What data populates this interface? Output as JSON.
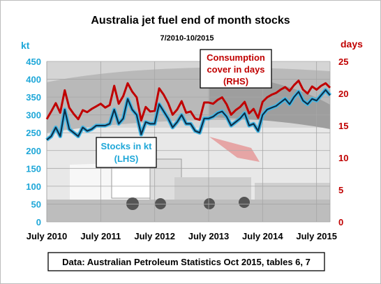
{
  "chart_data": {
    "type": "line",
    "title": "Australia jet fuel end of month stocks",
    "subtitle": "7/2010-10/2015",
    "left_axis": {
      "unit": "kt",
      "ylim": [
        0,
        450
      ],
      "ticks": [
        0,
        50,
        100,
        150,
        200,
        250,
        300,
        350,
        400,
        450
      ],
      "color": "#1ea7d8"
    },
    "right_axis": {
      "unit": "days",
      "ylim": [
        0,
        25
      ],
      "ticks": [
        0,
        5,
        10,
        15,
        20,
        25
      ],
      "color": "#c00000"
    },
    "x_ticks": [
      {
        "label": "July 2010",
        "month_index": 0
      },
      {
        "label": "July 2011",
        "month_index": 12
      },
      {
        "label": "July 2012",
        "month_index": 24
      },
      {
        "label": "July 2013",
        "month_index": 36
      },
      {
        "label": "July 2014",
        "month_index": 48
      },
      {
        "label": "July 2015",
        "month_index": 60
      }
    ],
    "x_start": "2010-07",
    "x_end": "2015-10",
    "grid": true,
    "series": [
      {
        "name": "Stocks in kt",
        "axis": "left",
        "color": "#0b2f4a",
        "values": [
          230,
          240,
          265,
          240,
          315,
          260,
          250,
          240,
          265,
          255,
          260,
          270,
          270,
          270,
          275,
          315,
          275,
          290,
          345,
          315,
          300,
          245,
          280,
          275,
          275,
          330,
          310,
          290,
          265,
          280,
          300,
          275,
          275,
          255,
          250,
          290,
          290,
          295,
          305,
          310,
          295,
          270,
          280,
          290,
          305,
          270,
          275,
          255,
          300,
          315,
          320,
          325,
          335,
          345,
          330,
          350,
          365,
          340,
          330,
          345,
          340,
          355,
          370,
          355
        ]
      },
      {
        "name": "Consumption cover in days",
        "axis": "right",
        "color": "#c00000",
        "values": [
          16.0,
          17.2,
          18.5,
          17.0,
          20.5,
          17.8,
          16.8,
          16.0,
          17.4,
          17.1,
          17.6,
          18.0,
          18.4,
          17.8,
          18.2,
          21.2,
          18.4,
          19.6,
          21.6,
          20.3,
          19.4,
          15.8,
          17.9,
          17.2,
          17.3,
          20.8,
          19.8,
          18.5,
          16.7,
          17.5,
          18.8,
          17.0,
          17.2,
          16.1,
          15.9,
          18.6,
          18.6,
          18.4,
          19.0,
          19.4,
          18.3,
          16.7,
          17.4,
          17.9,
          18.7,
          16.9,
          17.6,
          16.2,
          18.7,
          19.4,
          19.8,
          20.1,
          20.6,
          21.0,
          20.4,
          21.3,
          22.0,
          20.6,
          20.0,
          21.1,
          20.6,
          21.2,
          21.6,
          20.9
        ]
      }
    ]
  },
  "annotations": {
    "consumption": [
      "Consumption",
      "cover in days",
      "(RHS)"
    ],
    "stocks": [
      "Stocks in kt",
      "(LHS)"
    ],
    "source": "Data: Australian Petroleum Statistics Oct 2015, tables 6, 7"
  },
  "colors": {
    "grid": "#a6a6a6",
    "left_axis": "#1ea7d8",
    "right_axis": "#c00000",
    "stocks_line": "#0b2f4a",
    "stocks_halo": "#43b8e6",
    "days_line": "#c00000"
  }
}
